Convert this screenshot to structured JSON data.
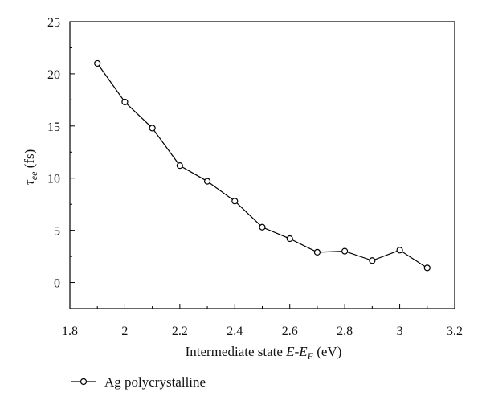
{
  "chart_data": {
    "type": "line",
    "title": "",
    "xlabel": {
      "prefix": "Intermediate state ",
      "var": "E",
      "dash": "-",
      "var2": "E",
      "sub": "F",
      "suffix": " (eV)"
    },
    "ylabel": {
      "var": "τ",
      "sub": "ee",
      "suffix": " (fs)"
    },
    "xlim": [
      1.8,
      3.2
    ],
    "ylim": [
      -2.5,
      25
    ],
    "xticks": [
      1.8,
      2,
      2.2,
      2.4,
      2.6,
      2.8,
      3,
      3.2
    ],
    "xtick_labels": [
      "1.8",
      "2",
      "2.2",
      "2.4",
      "2.6",
      "2.8",
      "3",
      "3.2"
    ],
    "yticks": [
      0,
      5,
      10,
      15,
      20,
      25
    ],
    "ytick_labels": [
      "0",
      "5",
      "10",
      "15",
      "20",
      "25"
    ],
    "grid": false,
    "legend_position": "bottom-left, below plot",
    "series": [
      {
        "name": "Ag polycrystalline",
        "marker": "open-circle",
        "color": "#000000",
        "x": [
          1.9,
          2.0,
          2.1,
          2.2,
          2.3,
          2.4,
          2.5,
          2.6,
          2.7,
          2.8,
          2.9,
          3.0,
          3.1
        ],
        "y": [
          21.0,
          17.3,
          14.8,
          11.2,
          9.7,
          7.8,
          5.3,
          4.2,
          2.9,
          3.0,
          2.1,
          3.1,
          1.4
        ]
      }
    ]
  }
}
